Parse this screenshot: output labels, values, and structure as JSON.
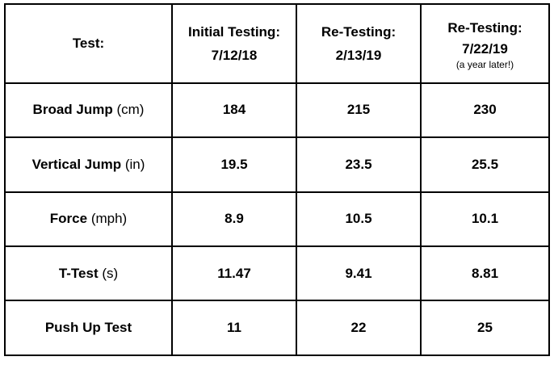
{
  "table": {
    "headers": {
      "test": "Test:",
      "initial_line1": "Initial Testing:",
      "initial_line2": "7/12/18",
      "retest1_line1": "Re-Testing:",
      "retest1_line2": "2/13/19",
      "retest2_line1": "Re-Testing:",
      "retest2_line2": "7/22/19",
      "retest2_note": "(a year later!)"
    },
    "rows": [
      {
        "label": "Broad Jump",
        "unit": "(cm)",
        "values": [
          "184",
          "215",
          "230"
        ]
      },
      {
        "label": "Vertical Jump",
        "unit": "(in)",
        "values": [
          "19.5",
          "23.5",
          "25.5"
        ]
      },
      {
        "label": "Force",
        "unit": "(mph)",
        "values": [
          "8.9",
          "10.5",
          "10.1"
        ]
      },
      {
        "label": "T-Test",
        "unit": "(s)",
        "values": [
          "11.47",
          "9.41",
          "8.81"
        ]
      },
      {
        "label": "Push Up Test",
        "unit": "",
        "values": [
          "11",
          "22",
          "25"
        ]
      }
    ]
  }
}
